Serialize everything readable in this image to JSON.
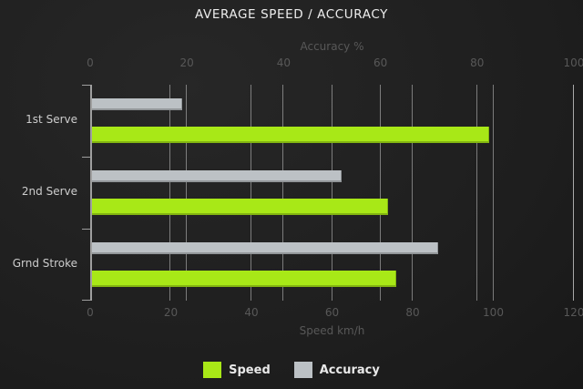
{
  "chart_data": {
    "type": "bar",
    "orientation": "horizontal",
    "title": "AVERAGE SPEED / ACCURACY",
    "categories": [
      "1st Serve",
      "2nd Serve",
      "Grnd Stroke"
    ],
    "series": [
      {
        "name": "Speed",
        "axis": "bottom",
        "color": "#a8e817",
        "values": [
          99,
          74,
          76
        ]
      },
      {
        "name": "Accuracy",
        "axis": "top",
        "color": "#bcc1c5",
        "values": [
          19,
          52,
          72
        ]
      }
    ],
    "top_axis": {
      "label": "Accuracy %",
      "min": 0,
      "max": 100,
      "ticks": [
        0,
        20,
        40,
        60,
        80,
        100
      ]
    },
    "bottom_axis": {
      "label": "Speed km/h",
      "min": 0,
      "max": 120,
      "ticks": [
        0,
        20,
        40,
        60,
        80,
        100,
        120
      ]
    },
    "grid": true,
    "legend_position": "bottom",
    "colors": {
      "background": "#1e1e1e",
      "title_text": "#ededed",
      "axis_text": "#585858",
      "category_text": "#cdcdcd",
      "gridline": "#8f8f8f"
    }
  }
}
